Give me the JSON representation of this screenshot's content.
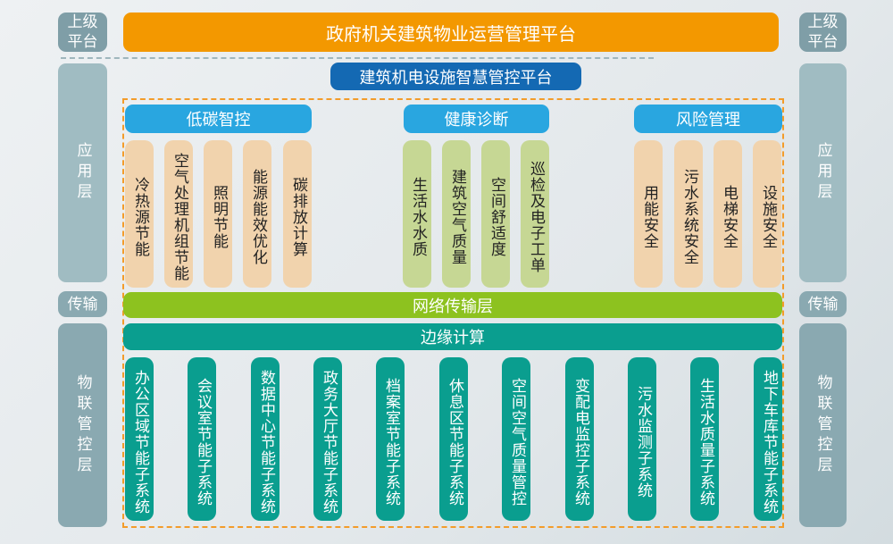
{
  "colors": {
    "orange": "#f39800",
    "blue": "#1469b3",
    "group_header": "#29a6e0",
    "network": "#8dc21f",
    "edge": "#0a9e8f",
    "side_label": "#8aa9b1"
  },
  "side_labels": {
    "upper": "上级\n平台",
    "app": "应用层",
    "transport": "传输",
    "iot": "物联管控层"
  },
  "top_platform": "政府机关建筑物业运营管理平台",
  "sub_platform": "建筑机电设施智慧管控平台",
  "groups": [
    {
      "title": "低碳智控",
      "items": [
        "冷热源节能",
        "空气处理机组节能",
        "照明节能",
        "能源能效优化",
        "碳排放计算"
      ]
    },
    {
      "title": "健康诊断",
      "items": [
        "生活水水质",
        "建筑空气质量",
        "空间舒适度",
        "巡检及电子工单"
      ]
    },
    {
      "title": "风险管理",
      "items": [
        "用能安全",
        "污水系统安全",
        "电梯安全",
        "设施安全"
      ]
    }
  ],
  "network_layer": "网络传输层",
  "edge_computing": "边缘计算",
  "iot_items": [
    "办公区域节能子系统",
    "会议室节能子系统",
    "数据中心节能子系统",
    "政务大厅节能子系统",
    "档案室节能子系统",
    "休息区节能子系统",
    "空间空气质量管控",
    "变配电监控子系统",
    "污水监测子系统",
    "生活水质量子系统",
    "地下车库节能子系统"
  ]
}
